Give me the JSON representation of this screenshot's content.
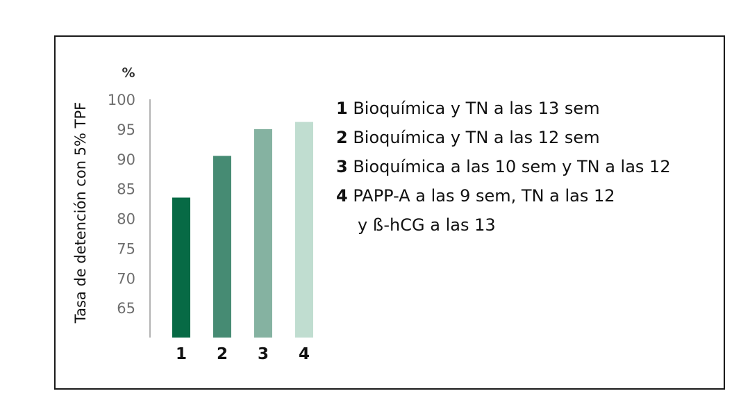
{
  "chart_data": {
    "type": "bar",
    "unit_label": "%",
    "ylabel": "Tasa de detención con 5% TPF",
    "categories": [
      "1",
      "2",
      "3",
      "4"
    ],
    "values": [
      83.5,
      90.5,
      95,
      96.2
    ],
    "ylim": [
      60,
      100
    ],
    "yticks": [
      "100",
      "95",
      "90",
      "85",
      "80",
      "75",
      "70",
      "65"
    ],
    "colors": [
      "#076a45",
      "#468b73",
      "#85b2a1",
      "#c0ddd0"
    ],
    "grid": false,
    "legend_position": "right",
    "legend": [
      {
        "num": "1",
        "text": " Bioquímica y TN a las 13 sem"
      },
      {
        "num": "2",
        "text": " Bioquímica y TN a las 12 sem"
      },
      {
        "num": "3",
        "text": " Bioquímica a las 10 sem y TN a las 12"
      },
      {
        "num": "4",
        "text": " PAPP-A a las 9 sem, TN a las 12"
      },
      {
        "num": "",
        "text": "y ß-hCG a las 13"
      }
    ]
  }
}
